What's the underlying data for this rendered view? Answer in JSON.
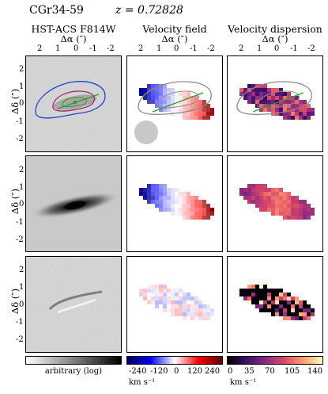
{
  "header": {
    "object": "CGr34-59",
    "redshift": "z = 0.72828"
  },
  "columns": [
    {
      "title": "HST-ACS F814W",
      "xlabel": "Δα (″)"
    },
    {
      "title": "Velocity field",
      "xlabel": "Δα (″)"
    },
    {
      "title": "Velocity dispersion",
      "xlabel": "Δα (″)"
    }
  ],
  "ylabel": "Δδ (″)",
  "x_ticks": [
    "2",
    "1",
    "0",
    "-1",
    "-2"
  ],
  "y_ticks": [
    "2",
    "1",
    "0",
    "-1",
    "-2"
  ],
  "colorbars": [
    {
      "label": "arbitrary (log)",
      "unit": "",
      "ticks": []
    },
    {
      "label": "",
      "unit": "km s⁻¹",
      "ticks": [
        "-240",
        "-120",
        "0",
        "120",
        "240"
      ]
    },
    {
      "label": "",
      "unit": "km s⁻¹",
      "ticks": [
        "0",
        "35",
        "70",
        "105",
        "140"
      ]
    }
  ],
  "colors": {
    "hst_contour_blue": "#1f3fd6",
    "hst_contour_purple": "#a0206e",
    "major_axis_green": "#2e9b2e",
    "model_contour_gray": "#8a8a8a",
    "psf_disk": "#c8c8c8"
  }
}
